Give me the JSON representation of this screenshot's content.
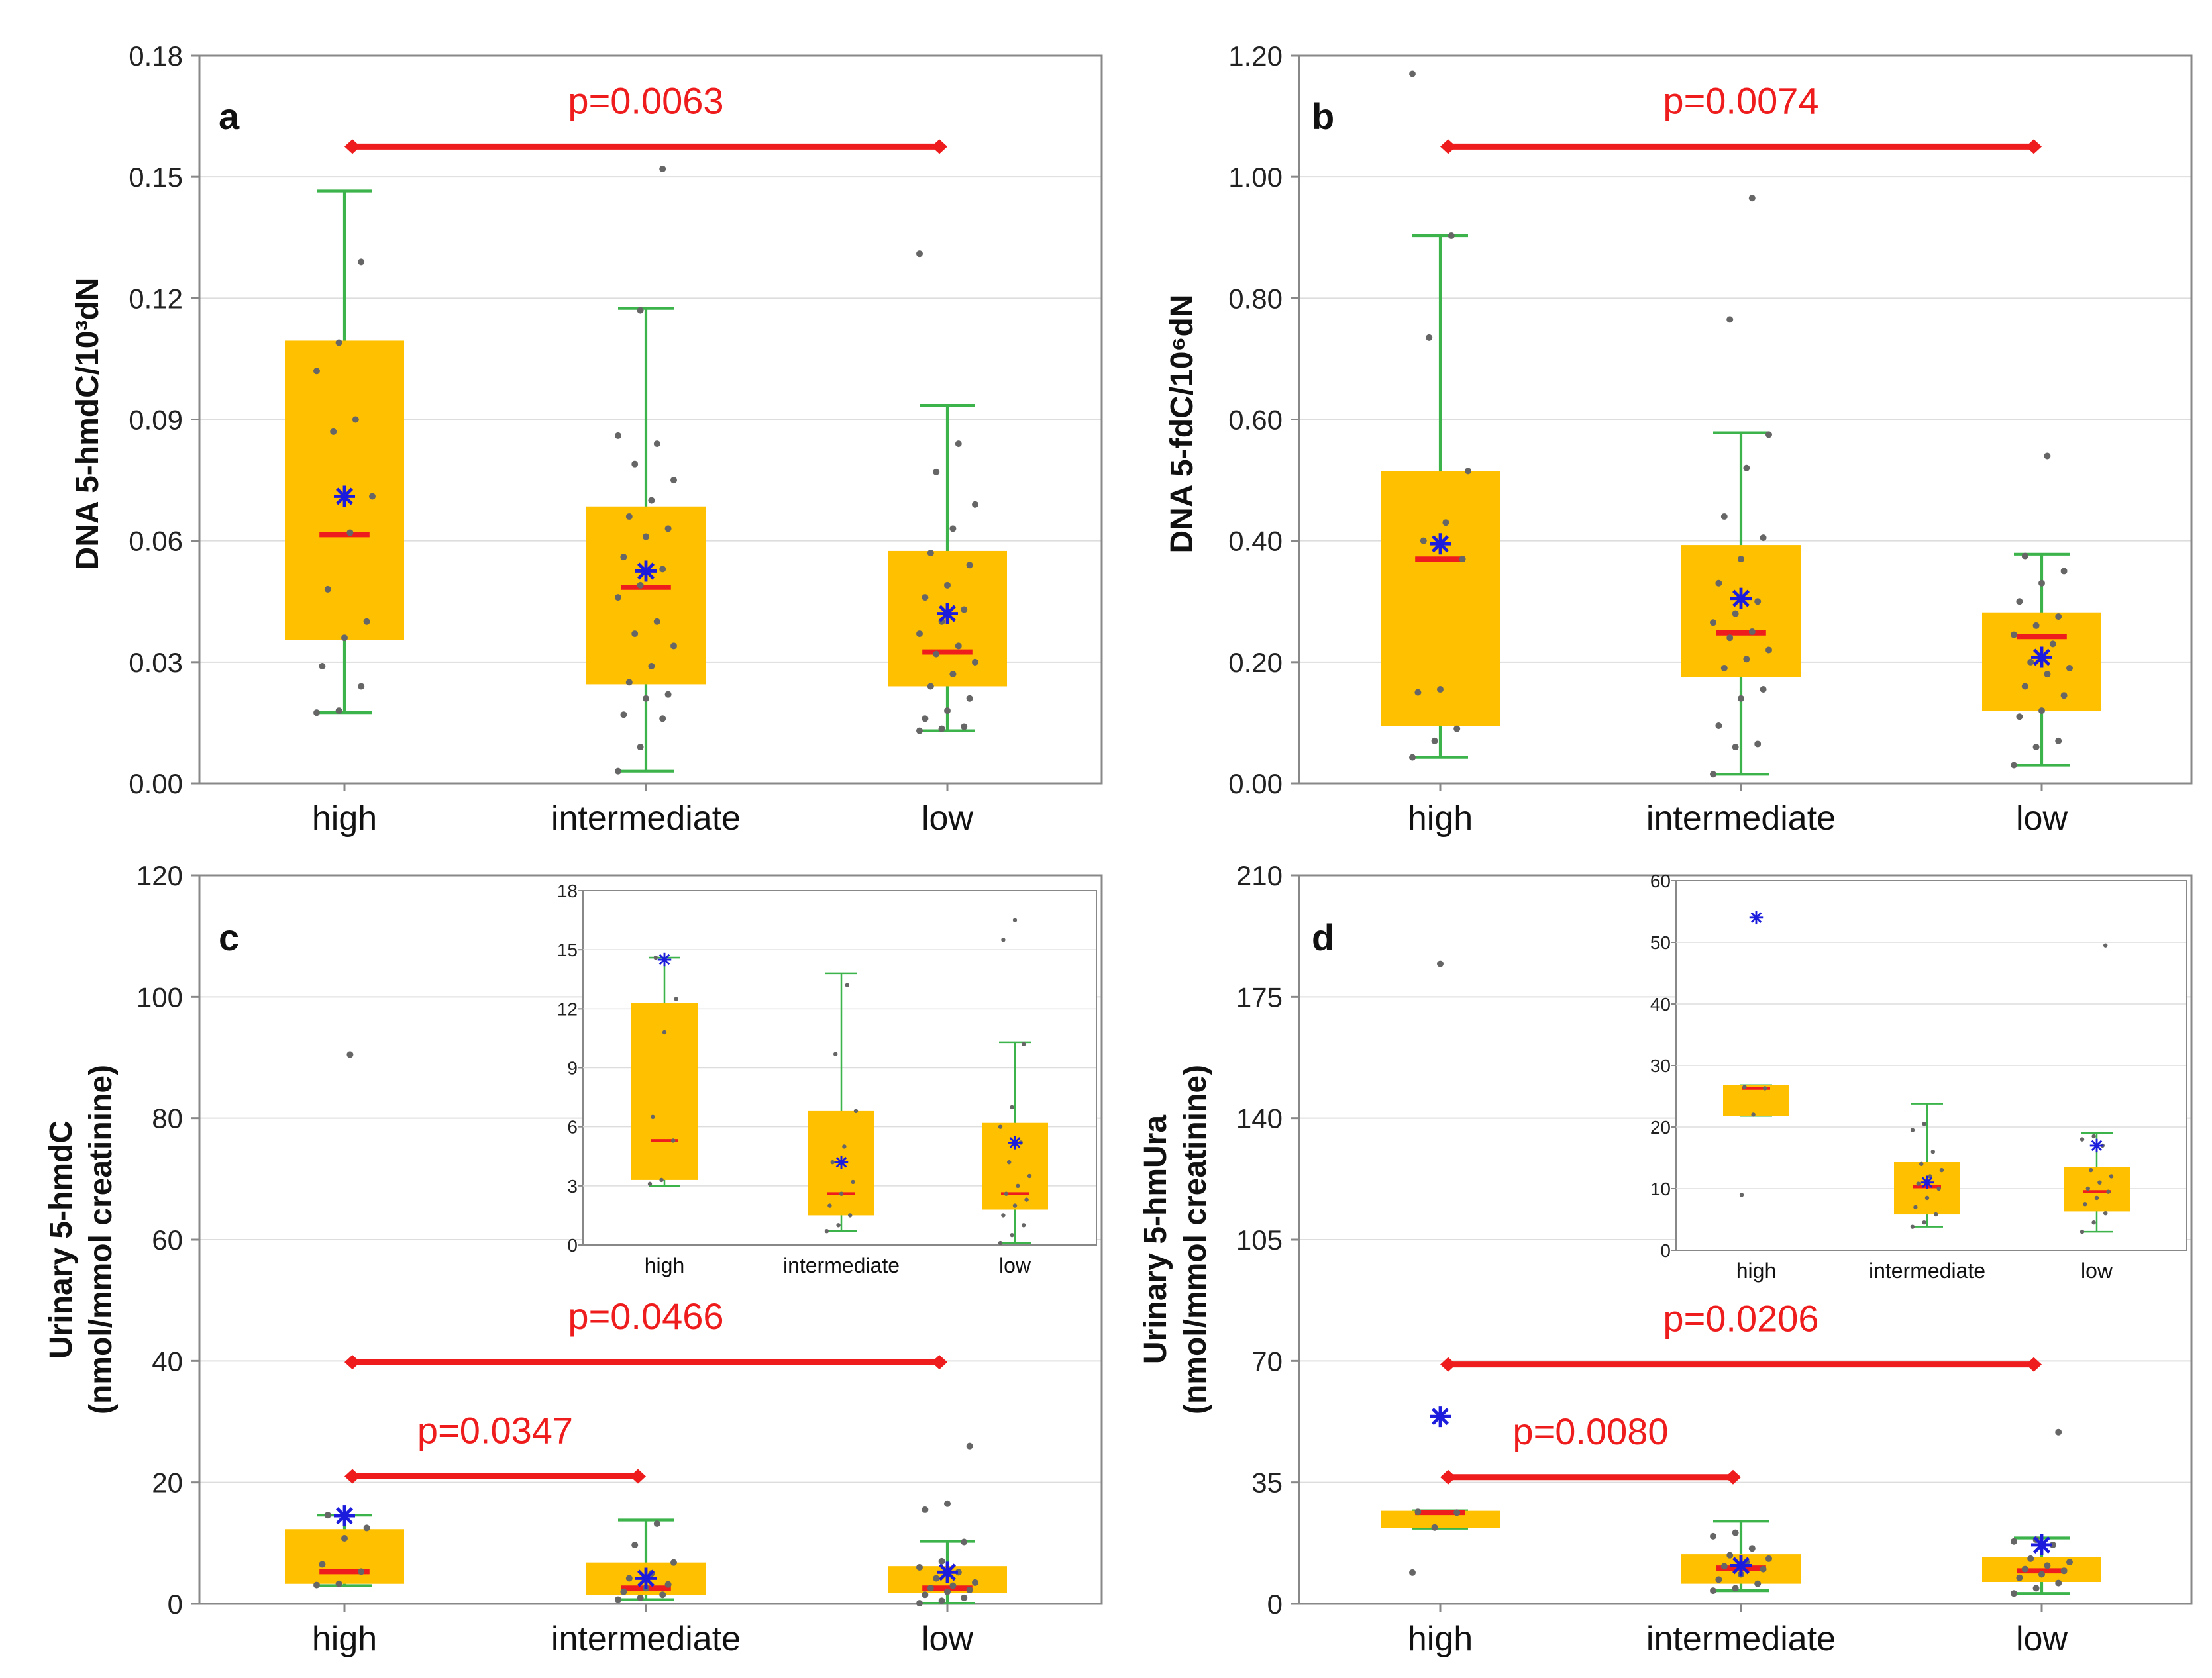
{
  "colors": {
    "box": "#ffc000",
    "whisker": "#3cb44b",
    "median": "#ee1c1c",
    "mean": "#1c1cdc",
    "point": "#666666",
    "bracket": "#ee1c1c",
    "grid": "#dddddd",
    "frame": "#888888"
  },
  "chart_data": [
    {
      "panel": "a",
      "type": "box",
      "ylabel": "DNA 5-hmdC/10³dN",
      "yticks": [
        0,
        0.03,
        0.06,
        0.09,
        0.12,
        0.15,
        0.18
      ],
      "ytick_labels": [
        "0.00",
        "0.03",
        "0.06",
        "0.09",
        "0.12",
        "0.15",
        "0.18"
      ],
      "ylim": [
        0,
        0.18
      ],
      "categories": [
        "high",
        "intermediate",
        "low"
      ],
      "boxes": [
        {
          "q1": 0.0355,
          "median": 0.0615,
          "q3": 0.1095,
          "wlow": 0.0175,
          "whigh": 0.1465,
          "mean": 0.071,
          "points": [
            0.0175,
            0.018,
            0.024,
            0.029,
            0.036,
            0.04,
            0.048,
            0.062,
            0.071,
            0.087,
            0.09,
            0.102,
            0.109,
            0.129
          ]
        },
        {
          "q1": 0.0245,
          "median": 0.0485,
          "q3": 0.0685,
          "wlow": 0.003,
          "whigh": 0.1175,
          "mean": 0.0525,
          "points": [
            0.003,
            0.009,
            0.016,
            0.017,
            0.021,
            0.022,
            0.025,
            0.029,
            0.034,
            0.037,
            0.04,
            0.046,
            0.049,
            0.053,
            0.056,
            0.061,
            0.063,
            0.066,
            0.07,
            0.075,
            0.079,
            0.084,
            0.086,
            0.117,
            0.152
          ]
        },
        {
          "q1": 0.024,
          "median": 0.0325,
          "q3": 0.0575,
          "wlow": 0.013,
          "whigh": 0.0935,
          "mean": 0.042,
          "points": [
            0.013,
            0.0135,
            0.014,
            0.016,
            0.018,
            0.021,
            0.024,
            0.027,
            0.03,
            0.032,
            0.034,
            0.037,
            0.04,
            0.043,
            0.046,
            0.049,
            0.054,
            0.057,
            0.063,
            0.069,
            0.077,
            0.084,
            0.131
          ]
        }
      ],
      "brackets": [
        {
          "from": 0,
          "to": 2,
          "y": 0.1575,
          "label": "p=0.0063"
        }
      ]
    },
    {
      "panel": "b",
      "type": "box",
      "ylabel": "DNA 5-fdC/10⁶dN",
      "yticks": [
        0,
        0.2,
        0.4,
        0.6,
        0.8,
        1.0,
        1.2
      ],
      "ytick_labels": [
        "0.00",
        "0.20",
        "0.40",
        "0.60",
        "0.80",
        "1.00",
        "1.20"
      ],
      "ylim": [
        0,
        1.2
      ],
      "categories": [
        "high",
        "intermediate",
        "low"
      ],
      "boxes": [
        {
          "q1": 0.095,
          "median": 0.37,
          "q3": 0.515,
          "wlow": 0.043,
          "whigh": 0.903,
          "mean": 0.395,
          "points": [
            0.043,
            0.07,
            0.09,
            0.15,
            0.155,
            0.37,
            0.4,
            0.43,
            0.515,
            0.735,
            0.903,
            1.17
          ]
        },
        {
          "q1": 0.175,
          "median": 0.248,
          "q3": 0.393,
          "wlow": 0.015,
          "whigh": 0.578,
          "mean": 0.305,
          "points": [
            0.015,
            0.06,
            0.065,
            0.095,
            0.14,
            0.155,
            0.19,
            0.205,
            0.22,
            0.24,
            0.25,
            0.265,
            0.28,
            0.3,
            0.33,
            0.37,
            0.405,
            0.44,
            0.52,
            0.575,
            0.765,
            0.965
          ]
        },
        {
          "q1": 0.12,
          "median": 0.242,
          "q3": 0.282,
          "wlow": 0.03,
          "whigh": 0.378,
          "mean": 0.208,
          "points": [
            0.03,
            0.06,
            0.07,
            0.11,
            0.12,
            0.145,
            0.16,
            0.18,
            0.19,
            0.2,
            0.23,
            0.245,
            0.26,
            0.275,
            0.3,
            0.33,
            0.35,
            0.375,
            0.54
          ]
        }
      ],
      "brackets": [
        {
          "from": 0,
          "to": 2,
          "y": 1.05,
          "label": "p=0.0074"
        }
      ]
    },
    {
      "panel": "c",
      "type": "box",
      "ylabel": [
        "Urinary 5-hmdC",
        "(nmol/mmol creatinine)"
      ],
      "yticks": [
        0,
        20,
        40,
        60,
        80,
        100,
        120
      ],
      "ytick_labels": [
        "0",
        "20",
        "40",
        "60",
        "80",
        "100",
        "120"
      ],
      "ylim": [
        0,
        120
      ],
      "categories": [
        "high",
        "intermediate",
        "low"
      ],
      "boxes": [
        {
          "q1": 3.3,
          "median": 5.3,
          "q3": 12.3,
          "wlow": 3.0,
          "whigh": 14.6,
          "mean": 14.5,
          "points": [
            3.1,
            3.3,
            5.3,
            6.5,
            10.8,
            12.5,
            14.6,
            90.5
          ]
        },
        {
          "q1": 1.5,
          "median": 2.6,
          "q3": 6.8,
          "wlow": 0.7,
          "whigh": 13.8,
          "mean": 4.2,
          "points": [
            0.7,
            1.0,
            1.5,
            2.0,
            2.6,
            3.2,
            4.2,
            5.0,
            6.8,
            9.7,
            13.2
          ]
        },
        {
          "q1": 1.8,
          "median": 2.6,
          "q3": 6.2,
          "wlow": 0.1,
          "whigh": 10.3,
          "mean": 5.2,
          "points": [
            0.1,
            0.5,
            1.0,
            1.5,
            2.0,
            2.3,
            2.6,
            3.0,
            3.5,
            4.2,
            5.2,
            6.0,
            7.0,
            10.2,
            15.5,
            16.5,
            26.0
          ]
        }
      ],
      "brackets": [
        {
          "from": 0,
          "to": 2,
          "y": 39.8,
          "label": "p=0.0466"
        },
        {
          "from": 0,
          "to": 1,
          "y": 21.0,
          "label": "p=0.0347"
        }
      ],
      "inset": {
        "yticks": [
          0,
          3,
          6,
          9,
          12,
          15,
          18
        ],
        "ytick_labels": [
          "0",
          "3",
          "6",
          "9",
          "12",
          "15",
          "18"
        ],
        "ylim": [
          0,
          18
        ],
        "categories": [
          "high",
          "intermediate",
          "low"
        ]
      }
    },
    {
      "panel": "d",
      "type": "box",
      "ylabel": [
        "Urinary 5-hmUra",
        "(nmol/mmol creatinine)"
      ],
      "yticks": [
        0,
        35,
        70,
        105,
        140,
        175,
        210
      ],
      "ytick_labels": [
        "0",
        "35",
        "70",
        "105",
        "140",
        "175",
        "210"
      ],
      "ylim": [
        0,
        210
      ],
      "categories": [
        "high",
        "intermediate",
        "low"
      ],
      "boxes": [
        {
          "q1": 21.8,
          "median": 26.3,
          "q3": 26.8,
          "wlow": 21.8,
          "whigh": 26.8,
          "mean": 54.0,
          "points": [
            9.0,
            22.0,
            26.3,
            26.5,
            184.5
          ]
        },
        {
          "q1": 5.8,
          "median": 10.3,
          "q3": 14.3,
          "wlow": 3.8,
          "whigh": 23.8,
          "mean": 11.0,
          "points": [
            3.8,
            4.5,
            5.8,
            7.0,
            8.5,
            10.0,
            10.8,
            12.0,
            13.0,
            14.0,
            16.0,
            19.5,
            20.5
          ]
        },
        {
          "q1": 6.3,
          "median": 9.5,
          "q3": 13.5,
          "wlow": 3.0,
          "whigh": 19.0,
          "mean": 17.0,
          "points": [
            3.0,
            4.5,
            6.0,
            7.5,
            8.5,
            9.5,
            10.0,
            11.0,
            12.0,
            13.0,
            17.0,
            18.0,
            18.5,
            49.5
          ]
        }
      ],
      "brackets": [
        {
          "from": 0,
          "to": 2,
          "y": 69.0,
          "label": "p=0.0206"
        },
        {
          "from": 0,
          "to": 1,
          "y": 36.5,
          "label": "p=0.0080"
        }
      ],
      "inset": {
        "yticks": [
          0,
          10,
          20,
          30,
          40,
          50,
          60
        ],
        "ytick_labels": [
          "0",
          "10",
          "20",
          "30",
          "40",
          "50",
          "60"
        ],
        "ylim": [
          0,
          60
        ],
        "categories": [
          "high",
          "intermediate",
          "low"
        ]
      }
    }
  ]
}
